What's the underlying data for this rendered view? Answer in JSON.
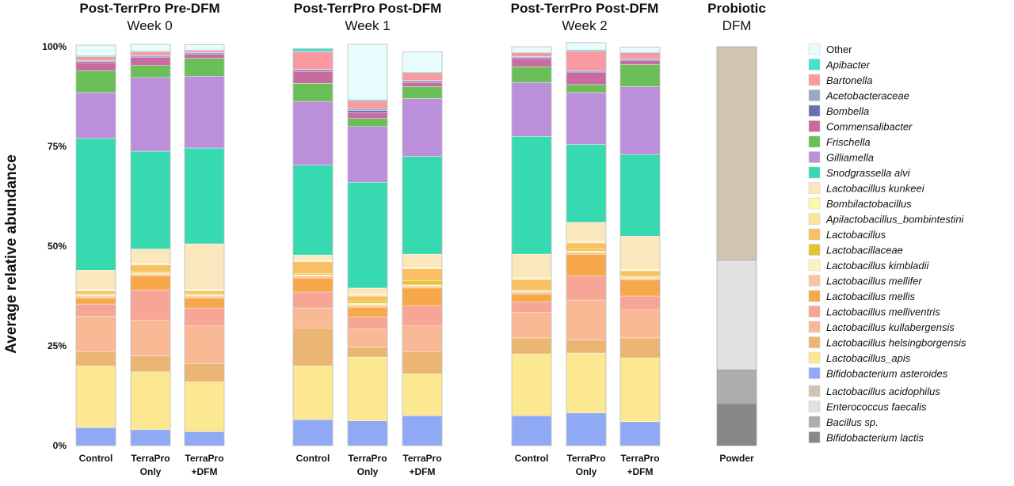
{
  "chart_data": {
    "type": "bar",
    "stacked": true,
    "ylabel": "Average relative abundance",
    "ylim": [
      0,
      100
    ],
    "yticks": [
      "0%",
      "25%",
      "50%",
      "75%",
      "100%"
    ],
    "groups": [
      {
        "title_bold": "Post-TerrPro Pre-DFM",
        "title_sub": "Week 0",
        "categories": [
          [
            "Control"
          ],
          [
            "TerraPro",
            "Only"
          ],
          [
            "TerraPro",
            "+DFM"
          ]
        ]
      },
      {
        "title_bold": "Post-TerrPro Post-DFM",
        "title_sub": "Week 1",
        "categories": [
          [
            "Control"
          ],
          [
            "TerraPro",
            "Only"
          ],
          [
            "TerraPro",
            "+DFM"
          ]
        ]
      },
      {
        "title_bold": "Post-TerrPro Post-DFM",
        "title_sub": "Week 2",
        "categories": [
          [
            "Control"
          ],
          [
            "TerraPro",
            "Only"
          ],
          [
            "TerraPro",
            "+DFM"
          ]
        ]
      },
      {
        "title_bold": "Probiotic",
        "title_sub": "DFM",
        "categories": [
          [
            "Powder"
          ]
        ]
      }
    ],
    "series": [
      {
        "name": "Bifidobacterium asteroides",
        "color": "#8fa9f5",
        "values": [
          4.5,
          4,
          3.5,
          6.5,
          6.2,
          7.5,
          7.5,
          8.2,
          6
        ]
      },
      {
        "name": "Lactobacillus_apis",
        "color": "#fbe890",
        "values": [
          15.5,
          14.5,
          12.5,
          13.5,
          16,
          10.5,
          15.5,
          15,
          16
        ]
      },
      {
        "name": "Lactobacillus helsingborgensis",
        "color": "#ebb574",
        "values": [
          3.5,
          4,
          4.5,
          9.5,
          2.5,
          5.5,
          4,
          3.3,
          5
        ]
      },
      {
        "name": "Lactobacillus kullabergensis",
        "color": "#f9b994",
        "values": [
          9,
          9,
          9.5,
          5,
          4.5,
          6.5,
          6.5,
          10,
          7
        ]
      },
      {
        "name": "Lactobacillus melliventris",
        "color": "#f7a594",
        "values": [
          3,
          7.5,
          4.5,
          4,
          3,
          5,
          2.5,
          6,
          3.5
        ]
      },
      {
        "name": "Lactobacillus mellis",
        "color": "#f7a84a",
        "values": [
          1.5,
          3.5,
          2.5,
          3.5,
          2.5,
          4.5,
          2,
          5.5,
          4
        ]
      },
      {
        "name": "Lactobacillus mellifer",
        "color": "#fbc3a4",
        "values": [
          0.5,
          0.5,
          0.5,
          0.5,
          0.5,
          0.5,
          0.5,
          0.5,
          0.5
        ]
      },
      {
        "name": "Lactobacillus kimbladii",
        "color": "#fdf4bc",
        "values": [
          0.3,
          0.3,
          0.3,
          0.3,
          0.5,
          0.3,
          0.3,
          0.3,
          0.3
        ]
      },
      {
        "name": "Lactobacillaceae",
        "color": "#e5c52e",
        "values": [
          0.3,
          0.3,
          0.3,
          0.3,
          0.5,
          1,
          0.3,
          0.5,
          0.3
        ]
      },
      {
        "name": "Lactobacillus",
        "color": "#f9c063",
        "values": [
          0.7,
          1.7,
          0.7,
          3,
          1.3,
          3,
          2.5,
          1.5,
          1.2
        ]
      },
      {
        "name": "Apilactobacillus_bombintestini",
        "color": "#fde49a",
        "values": [
          0.2,
          0.2,
          0.2,
          0.2,
          0.3,
          0.2,
          0.3,
          0.2,
          0.2
        ]
      },
      {
        "name": "Bombilactobacillus",
        "color": "#fdf9a6",
        "values": [
          0.2,
          0.2,
          0.2,
          0.2,
          0.2,
          0.2,
          0.2,
          0.2,
          0.2
        ]
      },
      {
        "name": "Lactobacillus kunkeei",
        "color": "#fbe7bd",
        "values": [
          4.8,
          3.6,
          11.4,
          1.3,
          1.5,
          3.3,
          5.9,
          4.8,
          8.3
        ]
      },
      {
        "name": "Snodgrassella alvi",
        "color": "#36d9b0",
        "values": [
          33,
          24.5,
          24,
          22.5,
          26.5,
          24.5,
          29.5,
          19.5,
          20.5
        ]
      },
      {
        "name": "Gilliamella",
        "color": "#bb8fd9",
        "values": [
          11.5,
          18.5,
          18,
          16,
          14,
          14.5,
          13.5,
          13,
          17
        ]
      },
      {
        "name": "Frischella",
        "color": "#6abf58",
        "values": [
          5.5,
          3,
          4.5,
          4.5,
          2,
          3,
          4,
          2,
          5.5
        ]
      },
      {
        "name": "Commensalibacter",
        "color": "#c96b9e",
        "values": [
          2,
          2,
          1,
          3,
          1.5,
          1,
          2,
          3,
          1
        ]
      },
      {
        "name": "Bombella",
        "color": "#6a6fb5",
        "values": [
          0.3,
          0.3,
          0.3,
          0.3,
          0.5,
          0.3,
          0.3,
          0.3,
          0.3
        ]
      },
      {
        "name": "Acetobacteraceae",
        "color": "#93abc6",
        "values": [
          0.2,
          0.2,
          0.2,
          0.2,
          0.5,
          0.2,
          0.2,
          0.2,
          0.2
        ]
      },
      {
        "name": "Bartonella",
        "color": "#f99aa3",
        "values": [
          1,
          1,
          0.5,
          4.5,
          2,
          2,
          1,
          5,
          1.5
        ]
      },
      {
        "name": "Apibacter",
        "color": "#3fe3cf",
        "values": [
          0.3,
          0.2,
          0.2,
          0.7,
          0.3,
          0.2,
          0.2,
          0.3,
          0.2
        ]
      },
      {
        "name": "Other",
        "color": "#e8fbfd",
        "values": [
          2.6,
          1.6,
          1.2,
          0,
          13.8,
          5,
          1.3,
          1.7,
          1.2
        ]
      }
    ],
    "dfm_series": [
      {
        "name": "Bifidobacterium lactis",
        "color": "#888888",
        "value": 10.5
      },
      {
        "name": "Bacillus sp.",
        "color": "#adadad",
        "value": 8.5
      },
      {
        "name": "Enterococcus faecalis",
        "color": "#e2e0e0",
        "value": 27.5
      },
      {
        "name": "Lactobacillus acidophilus",
        "color": "#cfc5b0",
        "value": 53.5
      }
    ],
    "legend": [
      {
        "name": "Other",
        "color": "#e8fbfd",
        "italic": false
      },
      {
        "name": "Apibacter",
        "color": "#3fe3cf",
        "italic": true
      },
      {
        "name": "Bartonella",
        "color": "#f99aa3",
        "italic": true
      },
      {
        "name": "Acetobacteraceae",
        "color": "#93abc6",
        "italic": true
      },
      {
        "name": "Bombella",
        "color": "#6a6fb5",
        "italic": true
      },
      {
        "name": "Commensalibacter",
        "color": "#c96b9e",
        "italic": true
      },
      {
        "name": "Frischella",
        "color": "#6abf58",
        "italic": true
      },
      {
        "name": "Gilliamella",
        "color": "#bb8fd9",
        "italic": true
      },
      {
        "name": "Snodgrassella alvi",
        "color": "#36d9b0",
        "italic": true
      },
      {
        "name": "Lactobacillus kunkeei",
        "color": "#fbe7bd",
        "italic": true
      },
      {
        "name": "Bombilactobacillus",
        "color": "#fdf9a6",
        "italic": true
      },
      {
        "name": "Apilactobacillus_bombintestini",
        "color": "#fde49a",
        "italic": true
      },
      {
        "name": "Lactobacillus",
        "color": "#f9c063",
        "italic": true
      },
      {
        "name": "Lactobacillaceae",
        "color": "#e5c52e",
        "italic": true
      },
      {
        "name": "Lactobacillus kimbladii",
        "color": "#fdf4bc",
        "italic": true
      },
      {
        "name": "Lactobacillus mellifer",
        "color": "#fbc3a4",
        "italic": true
      },
      {
        "name": "Lactobacillus mellis",
        "color": "#f7a84a",
        "italic": true
      },
      {
        "name": "Lactobacillus melliventris",
        "color": "#f7a594",
        "italic": true
      },
      {
        "name": "Lactobacillus kullabergensis",
        "color": "#f9b994",
        "italic": true
      },
      {
        "name": "Lactobacillus helsingborgensis",
        "color": "#ebb574",
        "italic": true
      },
      {
        "name": "Lactobacillus_apis",
        "color": "#fbe890",
        "italic": true
      },
      {
        "name": "Bifidobacterium asteroides",
        "color": "#8fa9f5",
        "italic": true
      },
      {
        "name": "Lactobacillus acidophilus",
        "color": "#cfc5b0",
        "italic": true
      },
      {
        "name": "Enterococcus faecalis",
        "color": "#e2e0e0",
        "italic": true
      },
      {
        "name": "Bacillus sp.",
        "color": "#adadad",
        "italic": true
      },
      {
        "name": "Bifidobacterium lactis",
        "color": "#888888",
        "italic": true
      }
    ],
    "legend_placement": "right",
    "grid": false
  }
}
